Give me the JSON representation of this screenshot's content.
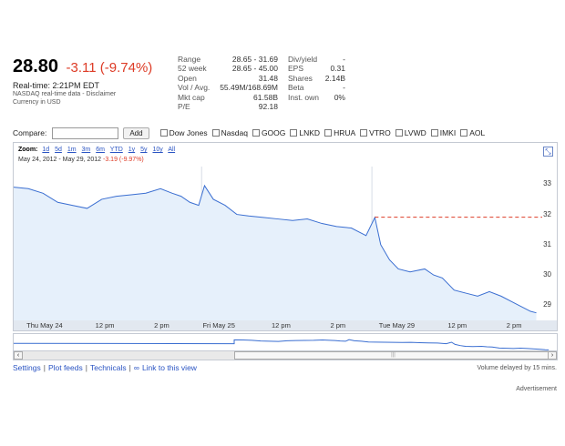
{
  "quote": {
    "price": "28.80",
    "change": "-3.11 (-9.74%)",
    "realtime": "Real-time:   2:21PM EDT",
    "disclaimer_line": "NASDAQ real-time data - Disclaimer",
    "currency": "Currency in USD"
  },
  "stats_left": [
    {
      "k": "Range",
      "v": "28.65 - 31.69"
    },
    {
      "k": "52 week",
      "v": "28.65 - 45.00"
    },
    {
      "k": "Open",
      "v": "31.48"
    },
    {
      "k": "Vol / Avg.",
      "v": "55.49M/168.69M"
    },
    {
      "k": "Mkt cap",
      "v": "61.58B"
    },
    {
      "k": "P/E",
      "v": "92.18"
    }
  ],
  "stats_right": [
    {
      "k": "Div/yield",
      "v": "-"
    },
    {
      "k": "EPS",
      "v": "0.31"
    },
    {
      "k": "Shares",
      "v": "2.14B"
    },
    {
      "k": "Beta",
      "v": "-"
    },
    {
      "k": "Inst. own",
      "v": "0%"
    }
  ],
  "compare": {
    "label": "Compare:",
    "add_button": "Add",
    "options": [
      "Dow Jones",
      "Nasdaq",
      "GOOG",
      "LNKD",
      "HRUA",
      "VTRO",
      "LVWD",
      "IMKI",
      "AOL"
    ]
  },
  "zoom": {
    "label": "Zoom:",
    "links": [
      "1d",
      "5d",
      "1m",
      "3m",
      "6m",
      "YTD",
      "1y",
      "5y",
      "10y",
      "All"
    ]
  },
  "date_range": {
    "range": "May 24, 2012  -  May 29, 2012",
    "change": "-3.19 (-9.97%)"
  },
  "links": {
    "settings": "Settings",
    "plot_feeds": "Plot feeds",
    "technicals": "Technicals",
    "link": "Link to this view"
  },
  "volume_note": "Volume delayed by 15 mins.",
  "advertisement": "Advertisement",
  "colors": {
    "negative": "#dd3b26",
    "line": "#3a6ed1",
    "fill": "#e6f0fb",
    "link": "#2a54c3",
    "prev_close": "#dd3b26"
  },
  "chart_data": {
    "type": "area",
    "ylim": [
      28.5,
      33.4
    ],
    "y_ticks": [
      "33",
      "32",
      "31",
      "30",
      "29"
    ],
    "y_tick_values": [
      33,
      32,
      31,
      30,
      29
    ],
    "x_ticks": [
      "Thu May 24",
      "12 pm",
      "2 pm",
      "Fri May 25",
      "12 pm",
      "2 pm",
      "Tue May 29",
      "12 pm",
      "2 pm"
    ],
    "x_tick_positions": [
      0.5,
      3,
      5,
      6.5,
      9,
      11,
      12.5,
      15,
      17
    ],
    "x_range": [
      0,
      18
    ],
    "previous_close": 31.91,
    "series": [
      {
        "points": [
          [
            0.0,
            32.9
          ],
          [
            0.5,
            32.85
          ],
          [
            1.0,
            32.7
          ],
          [
            1.5,
            32.4
          ],
          [
            2.0,
            32.3
          ],
          [
            2.5,
            32.2
          ],
          [
            3.0,
            32.5
          ],
          [
            3.5,
            32.6
          ],
          [
            4.0,
            32.65
          ],
          [
            4.5,
            32.7
          ],
          [
            5.0,
            32.85
          ],
          [
            5.4,
            32.7
          ],
          [
            5.7,
            32.6
          ],
          [
            6.0,
            32.4
          ],
          [
            6.3,
            32.3
          ],
          [
            6.5,
            32.95
          ],
          [
            6.8,
            32.5
          ],
          [
            7.2,
            32.3
          ],
          [
            7.6,
            32.0
          ],
          [
            8.0,
            31.95
          ],
          [
            8.5,
            31.9
          ],
          [
            9.0,
            31.85
          ],
          [
            9.5,
            31.8
          ],
          [
            10.0,
            31.85
          ],
          [
            10.5,
            31.7
          ],
          [
            11.0,
            31.6
          ],
          [
            11.5,
            31.55
          ],
          [
            12.0,
            31.3
          ],
          [
            12.3,
            31.9
          ],
          [
            12.5,
            31.0
          ],
          [
            12.8,
            30.5
          ],
          [
            13.1,
            30.2
          ],
          [
            13.5,
            30.1
          ],
          [
            14.0,
            30.2
          ],
          [
            14.3,
            30.0
          ],
          [
            14.6,
            29.9
          ],
          [
            15.0,
            29.5
          ],
          [
            15.4,
            29.4
          ],
          [
            15.8,
            29.3
          ],
          [
            16.2,
            29.45
          ],
          [
            16.6,
            29.3
          ],
          [
            17.0,
            29.1
          ],
          [
            17.3,
            28.95
          ],
          [
            17.6,
            28.8
          ],
          [
            17.8,
            28.75
          ]
        ]
      }
    ]
  }
}
